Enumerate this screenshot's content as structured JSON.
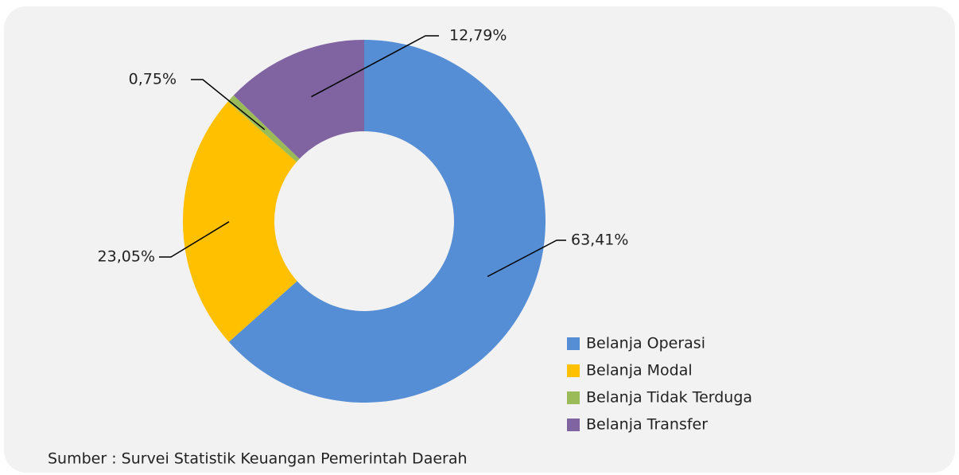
{
  "chart_data": {
    "type": "donut",
    "categories": [
      "Belanja Operasi",
      "Belanja Modal",
      "Belanja Tidak Terduga",
      "Belanja Transfer"
    ],
    "values": [
      63.41,
      23.05,
      0.75,
      12.79
    ],
    "value_labels": [
      "63,41%",
      "23,05%",
      "0,75%",
      "12,79%"
    ],
    "colors": [
      "#558ED5",
      "#FFC000",
      "#9BBB59",
      "#8064A2"
    ],
    "source": "Sumber : Survei Statistik Keuangan Pemerintah Daerah"
  }
}
